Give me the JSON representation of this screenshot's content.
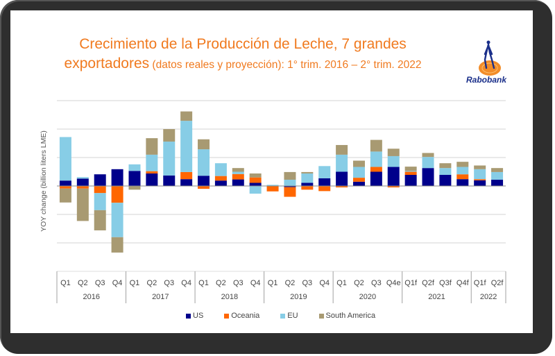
{
  "slide": {
    "title_line1": "Crecimiento de la Producción de Leche, 7 grandes",
    "title_line2_main": "exportadores",
    "title_line2_sub": " (datos reales y proyección): 1° trim. 2016 – 2° trim. 2022",
    "logo_text": "Rabobank",
    "logo_icon": "rabobank-logo-icon"
  },
  "colors": {
    "US": "#00008b",
    "Oceania": "#ff6600",
    "EU": "#87cde6",
    "South America": "#a89a72",
    "title": "#f07a1f"
  },
  "chart_data": {
    "type": "bar",
    "stacked": true,
    "title": "Crecimiento de la Producción de Leche, 7 grandes exportadores (datos reales y proyección): 1° trim. 2016 – 2° trim. 2022",
    "xlabel": "",
    "ylabel": "YOY change (billion liters LME)",
    "ylim": [
      -3,
      3
    ],
    "yticks_shown": false,
    "grid": true,
    "legend_position": "bottom",
    "categories": [
      "Q1",
      "Q2",
      "Q3",
      "Q4",
      "Q1",
      "Q2",
      "Q3",
      "Q4",
      "Q1",
      "Q2",
      "Q3",
      "Q4",
      "Q1",
      "Q2",
      "Q3",
      "Q4",
      "Q1",
      "Q2",
      "Q3",
      "Q4e",
      "Q1f",
      "Q2f",
      "Q3f",
      "Q4f",
      "Q1f",
      "Q2f"
    ],
    "year_groups": [
      {
        "label": "2016",
        "count": 4
      },
      {
        "label": "2017",
        "count": 4
      },
      {
        "label": "2018",
        "count": 4
      },
      {
        "label": "2019",
        "count": 4
      },
      {
        "label": "2020",
        "count": 4
      },
      {
        "label": "2021",
        "count": 4
      },
      {
        "label": "2022",
        "count": 2
      }
    ],
    "series": [
      {
        "name": "US",
        "values": [
          0.19,
          0.26,
          0.41,
          0.59,
          0.53,
          0.44,
          0.37,
          0.24,
          0.36,
          0.19,
          0.23,
          0.11,
          0.0,
          -0.04,
          0.11,
          0.27,
          0.5,
          0.15,
          0.5,
          0.67,
          0.39,
          0.63,
          0.39,
          0.24,
          0.2,
          0.22
        ]
      },
      {
        "name": "Oceania",
        "values": [
          -0.09,
          -0.09,
          -0.25,
          -0.59,
          0.0,
          0.08,
          0.0,
          0.25,
          -0.1,
          0.16,
          0.19,
          0.19,
          -0.19,
          -0.34,
          -0.13,
          -0.18,
          -0.05,
          0.14,
          0.17,
          -0.05,
          0.11,
          0.0,
          0.0,
          0.17,
          0.04,
          0.0
        ]
      },
      {
        "name": "EU",
        "values": [
          1.53,
          0.05,
          -0.6,
          -1.21,
          0.23,
          0.58,
          1.19,
          1.8,
          0.93,
          0.45,
          0.08,
          -0.27,
          0.04,
          0.22,
          0.33,
          0.43,
          0.6,
          0.38,
          0.54,
          0.38,
          0.03,
          0.39,
          0.24,
          0.26,
          0.35,
          0.27
        ]
      },
      {
        "name": "South America",
        "values": [
          -0.49,
          -1.14,
          -0.71,
          -0.54,
          -0.13,
          0.58,
          0.44,
          0.33,
          0.35,
          0.0,
          0.13,
          0.14,
          0.0,
          0.27,
          0.05,
          0.0,
          0.34,
          0.22,
          0.41,
          0.26,
          0.15,
          0.14,
          0.17,
          0.18,
          0.13,
          0.14
        ]
      }
    ]
  }
}
